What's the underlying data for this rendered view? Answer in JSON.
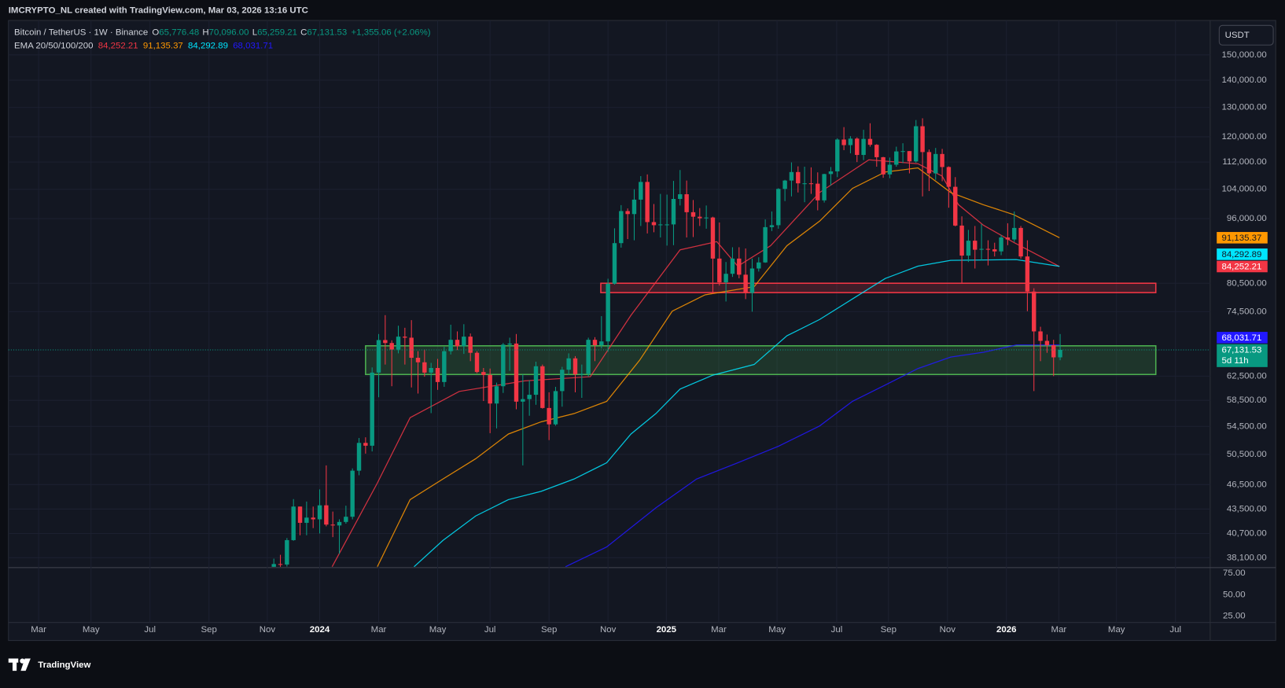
{
  "header": "IMCRYPTO_NL created with TradingView.com, Mar 03, 2026 13:16 UTC",
  "currency": "USDT",
  "logo": "TradingView",
  "chart_data": {
    "type": "candlestick",
    "symbol": "Bitcoin / TetherUS · 1W · Binance",
    "ohlc_legend": [
      {
        "label": "O",
        "value": "65,776.48"
      },
      {
        "label": "H",
        "value": "70,096.00"
      },
      {
        "label": "L",
        "value": "65,259.21"
      },
      {
        "label": "C",
        "value": "67,131.53"
      }
    ],
    "change": "+1,355.06 (+2.06%)",
    "up_color": "#089981",
    "down_color": "#f23645",
    "log": true,
    "grid": true,
    "xlim": [
      -40.5,
      142.9
    ],
    "xticks": [
      {
        "value": -35.9,
        "label": "Mar"
      },
      {
        "value": -27.9,
        "label": "May"
      },
      {
        "value": -18.9,
        "label": "Jul"
      },
      {
        "value": -9.9,
        "label": "Sep"
      },
      {
        "value": -1,
        "label": "Nov"
      },
      {
        "value": 7,
        "label": "2024"
      },
      {
        "value": 16,
        "label": "Mar"
      },
      {
        "value": 25,
        "label": "May"
      },
      {
        "value": 33,
        "label": "Jul"
      },
      {
        "value": 42,
        "label": "Sep"
      },
      {
        "value": 51,
        "label": "Nov"
      },
      {
        "value": 59.9,
        "label": "2025"
      },
      {
        "value": 67.9,
        "label": "Mar"
      },
      {
        "value": 76.8,
        "label": "May"
      },
      {
        "value": 85.9,
        "label": "Jul"
      },
      {
        "value": 93.8,
        "label": "Sep"
      },
      {
        "value": 102.8,
        "label": "Nov"
      },
      {
        "value": 111.8,
        "label": "2026"
      },
      {
        "value": 119.8,
        "label": "Mar"
      },
      {
        "value": 128.6,
        "label": "May"
      },
      {
        "value": 137.6,
        "label": "Jul"
      }
    ],
    "ylim": [
      37170,
      164750
    ],
    "yticks": [
      {
        "value": 150000,
        "label": "150,000.00"
      },
      {
        "value": 140000,
        "label": "140,000.00"
      },
      {
        "value": 130000,
        "label": "130,000.00"
      },
      {
        "value": 120000,
        "label": "120,000.00"
      },
      {
        "value": 112000,
        "label": "112,000.00"
      },
      {
        "value": 104000,
        "label": "104,000.00"
      },
      {
        "value": 96000,
        "label": "96,000.00"
      },
      {
        "value": 80500,
        "label": "80,500.00"
      },
      {
        "value": 74500,
        "label": "74,500.00"
      },
      {
        "value": 62500,
        "label": "62,500.00"
      },
      {
        "value": 58500,
        "label": "58,500.00"
      },
      {
        "value": 54500,
        "label": "54,500.00"
      },
      {
        "value": 50500,
        "label": "50,500.00"
      },
      {
        "value": 46500,
        "label": "46,500.00"
      },
      {
        "value": 43500,
        "label": "43,500.00"
      },
      {
        "value": 40700,
        "label": "40,700.00"
      },
      {
        "value": 38100,
        "label": "38,100.00"
      }
    ],
    "ohlc": [
      [
        37060,
        38000,
        35500,
        37450
      ],
      [
        37450,
        38400,
        36000,
        37400
      ],
      [
        37400,
        40200,
        37200,
        39970
      ],
      [
        39970,
        44700,
        39900,
        43800
      ],
      [
        43800,
        43800,
        40500,
        41900
      ],
      [
        41900,
        44400,
        40500,
        42500
      ],
      [
        42500,
        43800,
        41300,
        42300
      ],
      [
        42300,
        45900,
        40700,
        43950
      ],
      [
        43950,
        49000,
        41500,
        41700
      ],
      [
        41700,
        43200,
        40300,
        41600
      ],
      [
        41600,
        42300,
        38500,
        42000
      ],
      [
        42000,
        43900,
        41800,
        42600
      ],
      [
        42600,
        48600,
        42300,
        48300
      ],
      [
        48300,
        52800,
        47700,
        52100
      ],
      [
        52100,
        52900,
        50600,
        51700
      ],
      [
        51700,
        64000,
        50900,
        63100
      ],
      [
        63100,
        70100,
        59000,
        68950
      ],
      [
        68950,
        73800,
        64500,
        68400
      ],
      [
        68400,
        68900,
        60800,
        67200
      ],
      [
        67200,
        71700,
        66500,
        69600
      ],
      [
        69600,
        71300,
        64500,
        69400
      ],
      [
        69400,
        72800,
        60600,
        65700
      ],
      [
        65700,
        66900,
        59600,
        64900
      ],
      [
        64900,
        67200,
        62400,
        63100
      ],
      [
        63100,
        64800,
        56500,
        63900
      ],
      [
        63900,
        65500,
        60200,
        61500
      ],
      [
        61500,
        67700,
        60700,
        66900
      ],
      [
        66900,
        71900,
        66300,
        69000
      ],
      [
        69000,
        70600,
        67100,
        67800
      ],
      [
        67800,
        72000,
        66400,
        69600
      ],
      [
        69600,
        70200,
        65100,
        66600
      ],
      [
        66600,
        66900,
        63000,
        63200
      ],
      [
        63200,
        63900,
        58400,
        62700
      ],
      [
        62700,
        63800,
        53500,
        58000
      ],
      [
        58000,
        61400,
        54200,
        60800
      ],
      [
        60800,
        68400,
        59700,
        68100
      ],
      [
        68100,
        69400,
        63400,
        68300
      ],
      [
        68300,
        70100,
        57100,
        58300
      ],
      [
        58300,
        62800,
        49000,
        58700
      ],
      [
        58700,
        61800,
        56100,
        59400
      ],
      [
        59400,
        65000,
        57800,
        64200
      ],
      [
        64200,
        64500,
        57200,
        57300
      ],
      [
        57300,
        59800,
        52500,
        54800
      ],
      [
        54800,
        60700,
        54600,
        60000
      ],
      [
        60000,
        64100,
        57500,
        63600
      ],
      [
        63600,
        66500,
        62700,
        65600
      ],
      [
        65600,
        66000,
        59800,
        62800
      ],
      [
        62800,
        64500,
        58900,
        62900
      ],
      [
        62900,
        69400,
        62400,
        69000
      ],
      [
        69000,
        69500,
        65100,
        68000
      ],
      [
        68000,
        73600,
        67400,
        68700
      ],
      [
        68700,
        81500,
        66800,
        80400
      ],
      [
        80400,
        93500,
        80200,
        89800
      ],
      [
        89800,
        99600,
        88700,
        98000
      ],
      [
        98000,
        98700,
        90800,
        97200
      ],
      [
        97200,
        104000,
        90500,
        101100
      ],
      [
        101100,
        107800,
        94100,
        106100
      ],
      [
        106100,
        108300,
        92200,
        95100
      ],
      [
        95100,
        99900,
        92500,
        94300
      ],
      [
        94300,
        102700,
        91200,
        94500
      ],
      [
        94500,
        102500,
        89200,
        94500
      ],
      [
        94500,
        106400,
        89300,
        101300
      ],
      [
        101300,
        109600,
        99500,
        102600
      ],
      [
        102600,
        106500,
        91200,
        97700
      ],
      [
        97700,
        101000,
        91300,
        96500
      ],
      [
        96500,
        98800,
        94100,
        96100
      ],
      [
        96100,
        99500,
        93400,
        96300
      ],
      [
        96300,
        96500,
        78200,
        86100
      ],
      [
        86100,
        95000,
        80000,
        80700
      ],
      [
        80700,
        85300,
        76600,
        82600
      ],
      [
        82600,
        88800,
        81900,
        86100
      ],
      [
        86100,
        88800,
        81600,
        82400
      ],
      [
        82400,
        88500,
        77100,
        78400
      ],
      [
        78400,
        86100,
        74500,
        83800
      ],
      [
        83800,
        86400,
        83100,
        85200
      ],
      [
        85200,
        95800,
        85100,
        93800
      ],
      [
        93800,
        97900,
        92800,
        94300
      ],
      [
        94300,
        104300,
        93400,
        104100
      ],
      [
        104100,
        106700,
        100700,
        106500
      ],
      [
        106500,
        111900,
        102000,
        109000
      ],
      [
        109000,
        110700,
        103100,
        105700
      ],
      [
        105700,
        110600,
        100400,
        105700
      ],
      [
        105700,
        110400,
        102700,
        105600
      ],
      [
        105600,
        108900,
        98200,
        100900
      ],
      [
        100900,
        108500,
        100300,
        108400
      ],
      [
        108400,
        110500,
        105100,
        109200
      ],
      [
        109200,
        119500,
        107500,
        119100
      ],
      [
        119100,
        123200,
        115700,
        117300
      ],
      [
        117300,
        120200,
        114700,
        119400
      ],
      [
        119400,
        119800,
        112000,
        114200
      ],
      [
        114200,
        122300,
        112600,
        119300
      ],
      [
        119300,
        124500,
        116800,
        117400
      ],
      [
        117400,
        117600,
        110600,
        113500
      ],
      [
        113500,
        113600,
        107300,
        108300
      ],
      [
        108300,
        113400,
        107200,
        111200
      ],
      [
        111200,
        116800,
        110600,
        115300
      ],
      [
        115300,
        117900,
        111700,
        115400
      ],
      [
        115400,
        115400,
        108600,
        112200
      ],
      [
        112200,
        125600,
        111800,
        123500
      ],
      [
        123500,
        126200,
        102000,
        115100
      ],
      [
        115100,
        115900,
        103500,
        108600
      ],
      [
        108600,
        116400,
        106700,
        114500
      ],
      [
        114500,
        116100,
        106300,
        110500
      ],
      [
        110500,
        110700,
        98900,
        104700
      ],
      [
        104700,
        107500,
        94000,
        94200
      ],
      [
        94200,
        96600,
        80600,
        86800
      ],
      [
        86800,
        93100,
        85300,
        90400
      ],
      [
        90400,
        94100,
        83800,
        88200
      ],
      [
        88200,
        94600,
        85600,
        88400
      ],
      [
        88400,
        90500,
        84500,
        88300
      ],
      [
        88300,
        89900,
        86600,
        87800
      ],
      [
        87800,
        91800,
        86900,
        91200
      ],
      [
        91200,
        94800,
        89300,
        90700
      ],
      [
        90700,
        97900,
        90100,
        93600
      ],
      [
        93600,
        94100,
        86100,
        86600
      ],
      [
        86600,
        90500,
        74600,
        78700
      ],
      [
        78700,
        79400,
        60000,
        70600
      ],
      [
        70600,
        71500,
        65100,
        68800
      ],
      [
        68800,
        70000,
        66600,
        68000
      ],
      [
        68000,
        69000,
        62500,
        65776.48
      ],
      [
        65776.48,
        70096,
        65259.21,
        67131.53
      ]
    ],
    "ema_legend": "EMA 20/50/100/200",
    "lines": [
      {
        "color": "#f23645",
        "value_label": "84,252.21",
        "x": [
          8.9,
          15.8,
          20.8,
          28.3,
          38.3,
          48.3,
          54.5,
          62,
          67.6,
          70.8,
          75.8,
          83.3,
          90.8,
          98.3,
          102,
          104.5,
          108.3,
          112.9,
          119.9
        ],
        "values": [
          37170,
          46690,
          55800,
          59940,
          61700,
          62400,
          73760,
          88190,
          90170,
          84330,
          89180,
          103100,
          112700,
          111500,
          107800,
          99700,
          94290,
          90000,
          84252.21
        ]
      },
      {
        "color": "#ff9800",
        "value_label": "91,135.37",
        "x": [
          15.8,
          20.8,
          25.8,
          30.8,
          35.8,
          40.8,
          45.8,
          50.8,
          55.8,
          60.8,
          65.8,
          73.3,
          78.3,
          83.3,
          88.3,
          93.3,
          98.3,
          103.3,
          108.3,
          112.9,
          119.9
        ],
        "values": [
          37170,
          44640,
          47210,
          49900,
          53370,
          55180,
          56430,
          58350,
          65230,
          74600,
          78000,
          79760,
          89180,
          95360,
          104250,
          109020,
          110240,
          103100,
          99700,
          97070,
          91135.37
        ]
      },
      {
        "color": "#00e5ff",
        "value_label": "84,292.89",
        "x": [
          21.4,
          25.8,
          30.8,
          35.8,
          40.8,
          45.8,
          50.8,
          54.5,
          58.3,
          62,
          67,
          73.3,
          78.3,
          83.3,
          88.3,
          93.3,
          98.3,
          103.3,
          113.3,
          119.9
        ],
        "values": [
          37170,
          39930,
          42690,
          44640,
          45650,
          47210,
          49350,
          53370,
          56430,
          60330,
          62670,
          64510,
          69760,
          72940,
          77130,
          81560,
          84330,
          85670,
          85860,
          84292.89
        ]
      },
      {
        "color": "#2218ff",
        "value_label": "68,031.71",
        "x": [
          44.5,
          50.8,
          58.3,
          64.5,
          70.8,
          77,
          83.3,
          88.3,
          93.3,
          98.3,
          103.3,
          108.3,
          113.3,
          119.9
        ],
        "values": [
          37170,
          39230,
          43650,
          47210,
          49350,
          51620,
          54570,
          58350,
          61000,
          63800,
          65820,
          66700,
          68030,
          68031.71
        ]
      }
    ],
    "zones": [
      {
        "color": "#f23645",
        "x": [
          49.9,
          134.6
        ],
        "price": [
          78470,
          80500
        ]
      },
      {
        "color": "#4caf50",
        "x": [
          14,
          134.6
        ],
        "price": [
          62780,
          67880
        ]
      }
    ],
    "last_price": {
      "value": 67131.53,
      "label": "67,131.53",
      "countdown": "5d 11h"
    },
    "lower_pane": {
      "ylim": [
        17.3,
        80.8
      ],
      "yticks": [
        {
          "value": 75,
          "label": "75.00"
        },
        {
          "value": 50,
          "label": "50.00"
        },
        {
          "value": 25,
          "label": "25.00"
        }
      ]
    }
  }
}
